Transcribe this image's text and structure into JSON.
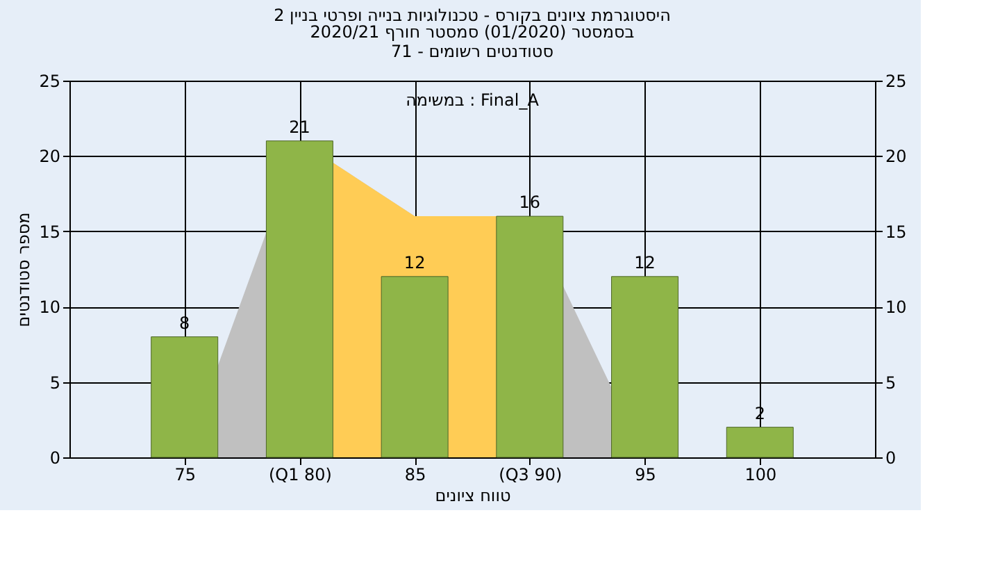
{
  "chart_data": {
    "type": "bar",
    "title": "היסטוגרמת ציונים בקורס - טכנולוגיות בנייה ופרטי בניין 2",
    "subtitle": [
      "בסמסטר  (01/2020)  סמסטר חורף  2020/21",
      "סטודנטים רשומים - 71"
    ],
    "xlabel": "טווח ציונים",
    "ylabel": "מספר סטודנטים",
    "annotations": [
      "במשימה : Final_A"
    ],
    "categories": [
      "75",
      "(Q1 80)",
      "85",
      "(Q3 90)",
      "95",
      "100"
    ],
    "series": [
      {
        "type": "area",
        "color": "#c0c0c0",
        "values": [
          0,
          21,
          16,
          16,
          0,
          0
        ]
      },
      {
        "type": "area",
        "color": "#ffcc55",
        "values": [
          null,
          21,
          16,
          16,
          null,
          null
        ]
      },
      {
        "color": "#8fb548",
        "values": [
          8,
          21,
          12,
          16,
          12,
          2
        ],
        "value_labels": [
          "8",
          "21",
          "12",
          "16",
          "12",
          "2"
        ]
      }
    ],
    "ylim": [
      0,
      25
    ],
    "yticks": [
      0,
      5,
      10,
      15,
      20,
      25
    ],
    "y2lim": [
      0,
      25
    ],
    "y2ticks": [
      0,
      5,
      10,
      15,
      20,
      25
    ],
    "grid": true
  }
}
